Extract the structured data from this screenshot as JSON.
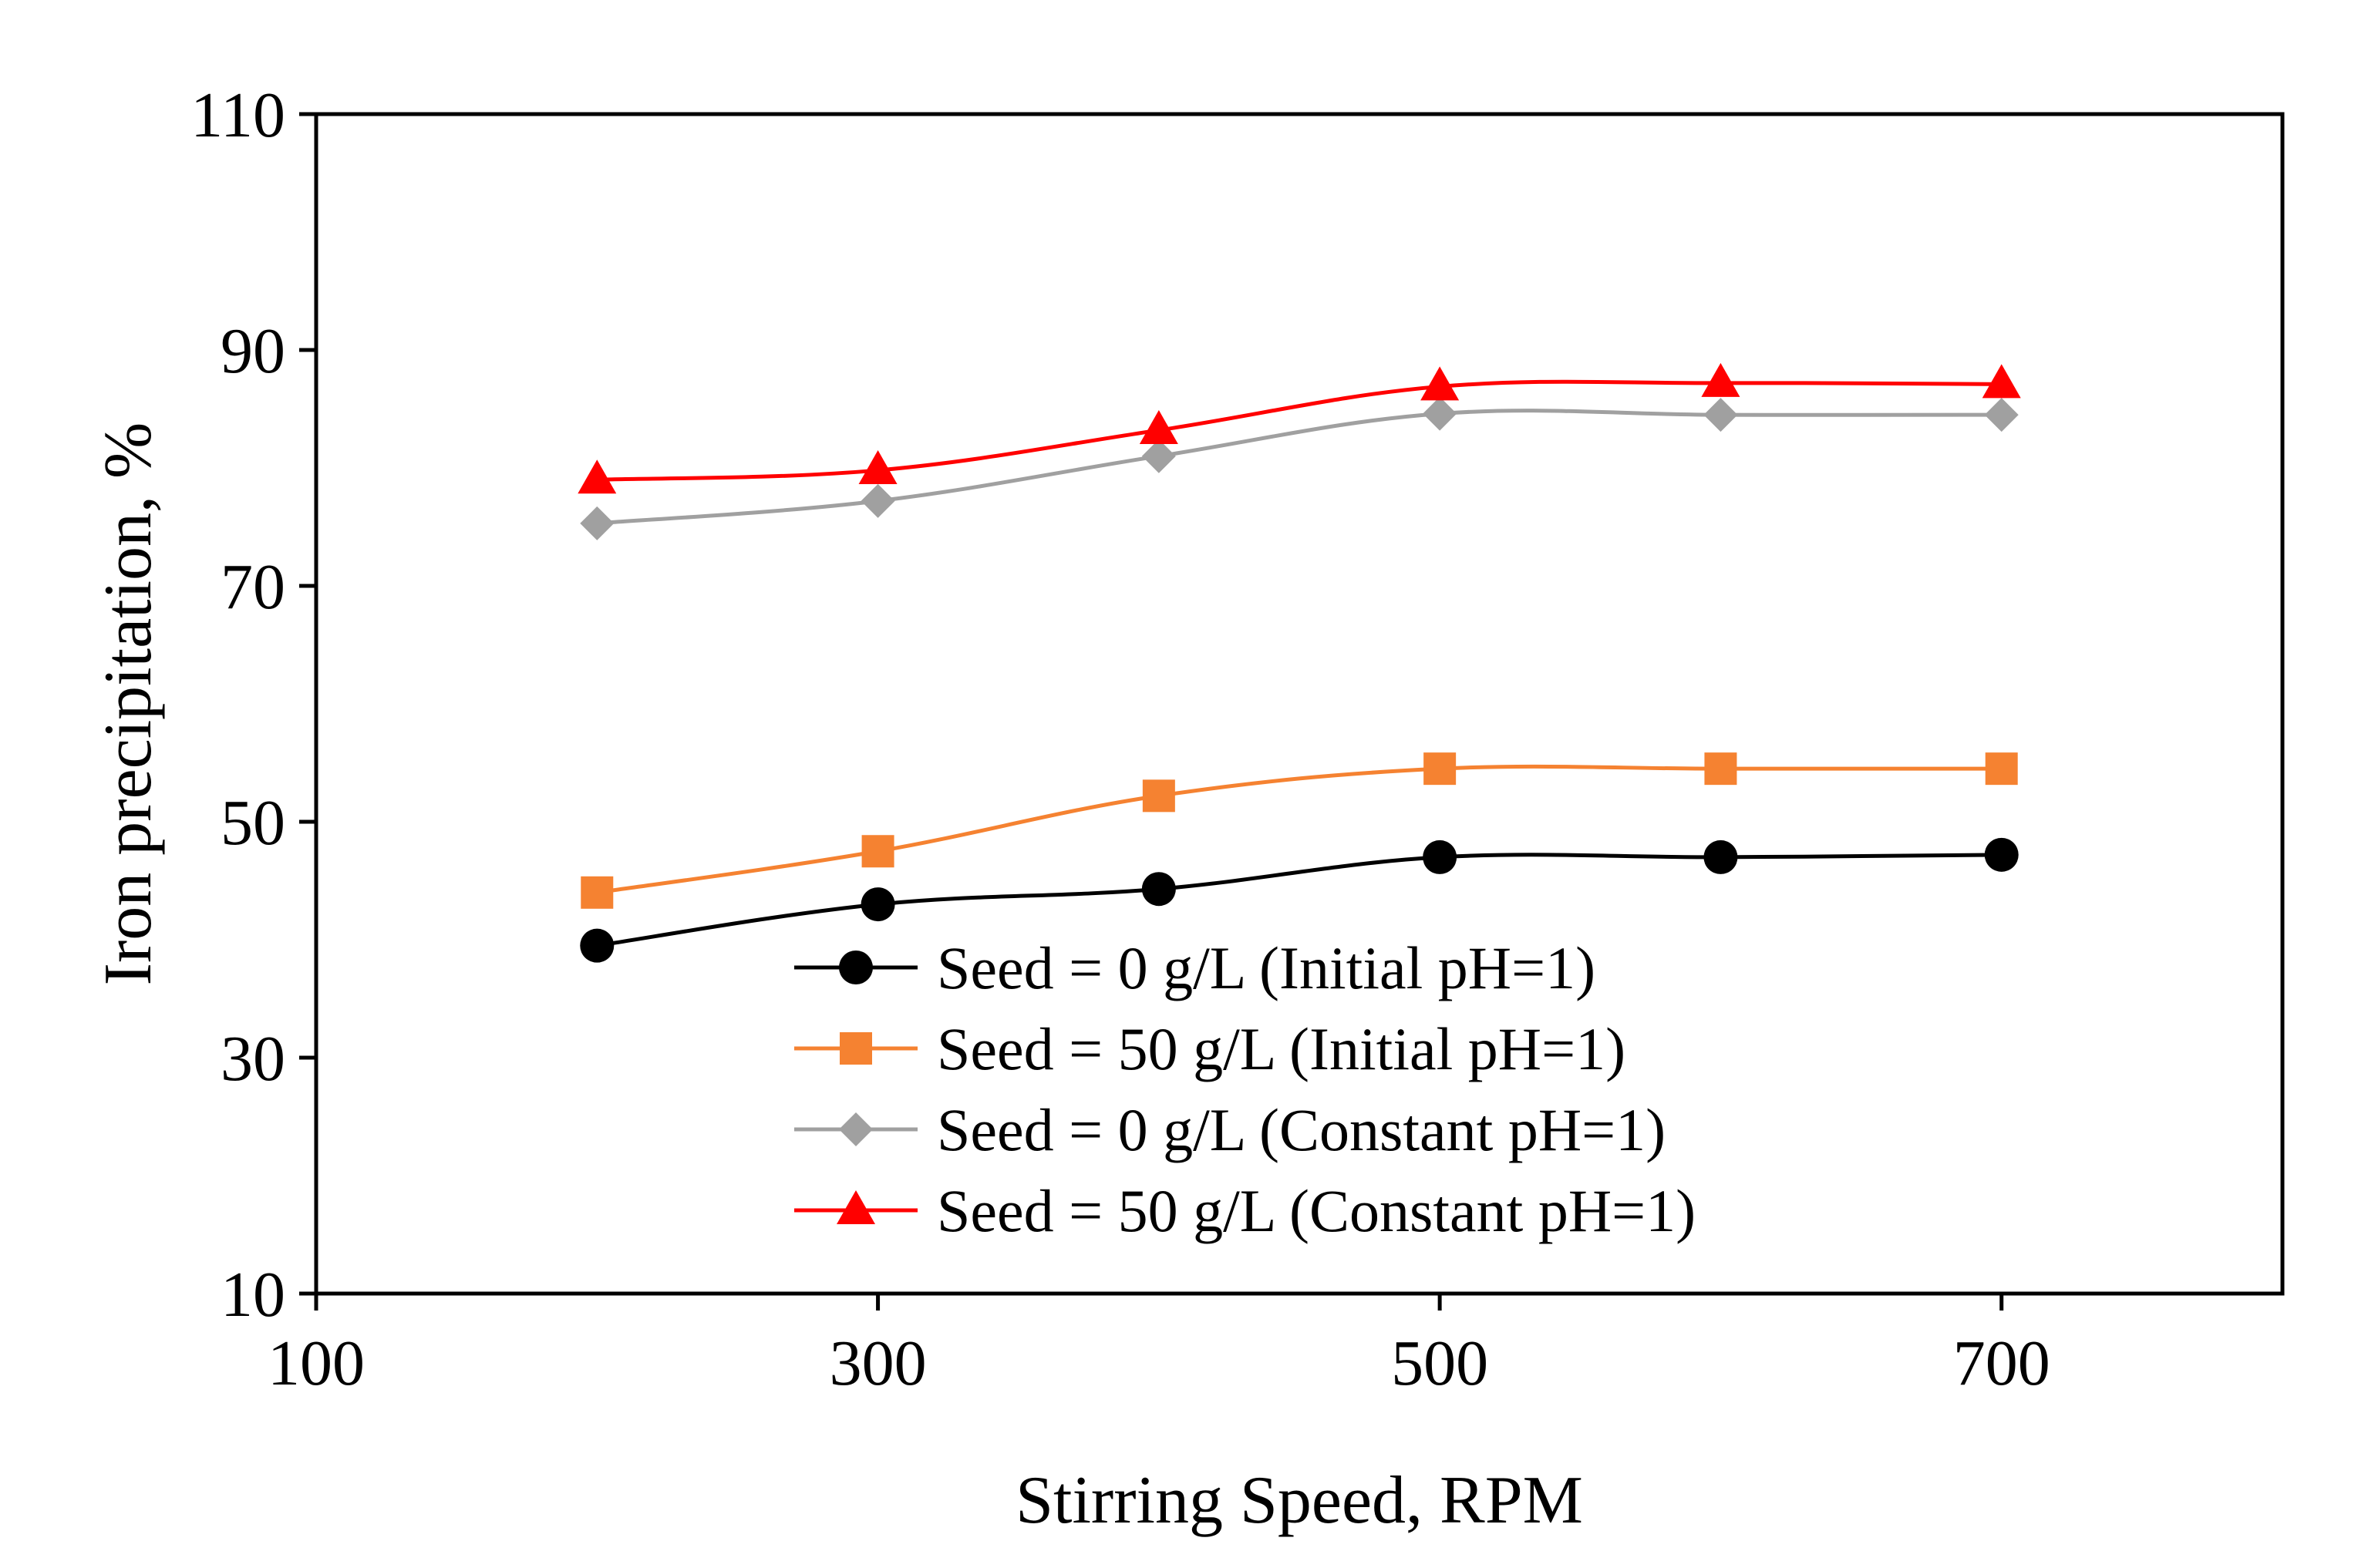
{
  "chart_data": {
    "type": "line",
    "title": "",
    "xlabel": "Stirring Speed, RPM",
    "ylabel": "Iron precipitation, %",
    "xlim": [
      100,
      800
    ],
    "ylim": [
      10,
      110
    ],
    "xticks": [
      "100",
      "300",
      "500",
      "700"
    ],
    "yticks": [
      "10",
      "30",
      "50",
      "70",
      "90",
      "110"
    ],
    "grid": false,
    "legend_position": "bottom-center",
    "x": [
      200,
      300,
      400,
      500,
      600,
      700
    ],
    "series": [
      {
        "name": "Seed = 0 g/L (Initial pH=1)",
        "values": [
          39.5,
          43.0,
          44.3,
          47.0,
          47.0,
          47.2
        ],
        "color": "#000000",
        "marker": "circle"
      },
      {
        "name": "Seed = 50 g/L (Initial pH=1)",
        "values": [
          44.0,
          47.5,
          52.2,
          54.5,
          54.5,
          54.5
        ],
        "color": "#f58231",
        "marker": "square"
      },
      {
        "name": "Seed = 0 g/L (Constant pH=1)",
        "values": [
          75.3,
          77.2,
          81.0,
          84.6,
          84.5,
          84.5
        ],
        "color": "#a0a0a0",
        "marker": "diamond"
      },
      {
        "name": "Seed = 50 g/L (Constant pH=1)",
        "values": [
          79.0,
          79.8,
          83.2,
          86.9,
          87.2,
          87.1
        ],
        "color": "#ff0000",
        "marker": "triangle"
      }
    ]
  }
}
